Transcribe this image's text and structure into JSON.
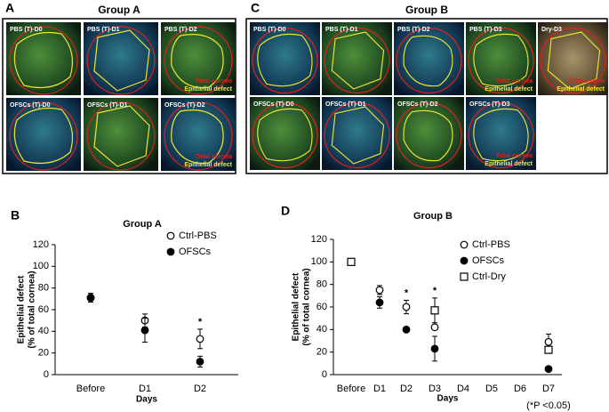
{
  "panel_labels": [
    "A",
    "C",
    "B",
    "D"
  ],
  "image_panels": [
    {
      "title": "Group A",
      "rows": [
        [
          {
            "label": "PBS (T)-D0"
          },
          {
            "label": "PBS (T)-D1"
          },
          {
            "label": "PBS (T)-D2",
            "notes": [
              "Total cornea",
              "Epithelial defect"
            ]
          }
        ],
        [
          {
            "label": "OFSCs (T)-D0"
          },
          {
            "label": "OFSCs (T)-D1"
          },
          {
            "label": "OFSCs (T)-D2",
            "notes": [
              "Total cornea",
              "Epithelial defect"
            ]
          }
        ]
      ]
    },
    {
      "title": "Group B",
      "rows": [
        [
          {
            "label": "PBS (T)-D0"
          },
          {
            "label": "PBS (T)-D1"
          },
          {
            "label": "PBS (T)-D2"
          },
          {
            "label": "PBS (T)-D3",
            "notes": [
              "Total cornea",
              "Epithelial defect"
            ]
          },
          {
            "label": "Dry-D3",
            "notes": [
              "Total cornea",
              "Epithelial defect"
            ]
          }
        ],
        [
          {
            "label": "OFSCs (T)-D0"
          },
          {
            "label": "OFSCs (T)-D1"
          },
          {
            "label": "OFSCs (T)-D2"
          },
          {
            "label": "OFSCs (T)-D3",
            "notes": [
              "Total cornea",
              "Epithelial defect"
            ]
          }
        ]
      ]
    }
  ],
  "chart_data": [
    {
      "type": "scatter",
      "title": "Group A",
      "x_label": "Days",
      "y_label": [
        "Epithelial defect",
        "(% of total cornea)"
      ],
      "categories": [
        "Before",
        "D1",
        "D2"
      ],
      "series": [
        {
          "name": "Ctrl-PBS",
          "marker": "open-circle",
          "color": "#000000",
          "values": [
            71,
            50,
            33
          ],
          "errors": [
            4,
            6,
            9
          ]
        },
        {
          "name": "OFSCs",
          "marker": "filled-circle",
          "color": "#000000",
          "values": [
            71,
            41,
            12
          ],
          "errors": [
            4,
            11,
            5
          ]
        }
      ],
      "ylim": [
        0,
        120
      ],
      "yticks": [
        0,
        20,
        40,
        60,
        80,
        100,
        120
      ],
      "annotations": [
        {
          "text": "*",
          "category": "D2"
        }
      ]
    },
    {
      "type": "scatter",
      "title": "Group B",
      "x_label": "Days",
      "y_label": [
        "Epithelial defect",
        "(% of total cornea)"
      ],
      "categories": [
        "Before",
        "D1",
        "D2",
        "D3",
        "D4",
        "D5",
        "D6",
        "D7"
      ],
      "series": [
        {
          "name": "Ctrl-PBS",
          "marker": "open-circle",
          "color": "#000000",
          "values": [
            null,
            75,
            60,
            42,
            null,
            null,
            null,
            29
          ],
          "errors": [
            null,
            4,
            6,
            null,
            null,
            null,
            null,
            7
          ]
        },
        {
          "name": "OFSCs",
          "marker": "filled-circle",
          "color": "#000000",
          "values": [
            null,
            64,
            40,
            23,
            null,
            null,
            null,
            5
          ],
          "errors": [
            null,
            5,
            2,
            11,
            null,
            null,
            null,
            null
          ]
        },
        {
          "name": "Ctrl-Dry",
          "marker": "open-square",
          "color": "#000000",
          "values": [
            100,
            null,
            null,
            57,
            null,
            null,
            null,
            22
          ],
          "errors": [
            null,
            null,
            null,
            11,
            null,
            null,
            null,
            null
          ]
        }
      ],
      "ylim": [
        0,
        120
      ],
      "yticks": [
        0,
        20,
        40,
        60,
        80,
        100,
        120
      ],
      "annotations": [
        {
          "text": "*",
          "category": "D2"
        },
        {
          "text": "*",
          "category": "D3"
        }
      ],
      "note": "(*P <0.05)"
    }
  ]
}
